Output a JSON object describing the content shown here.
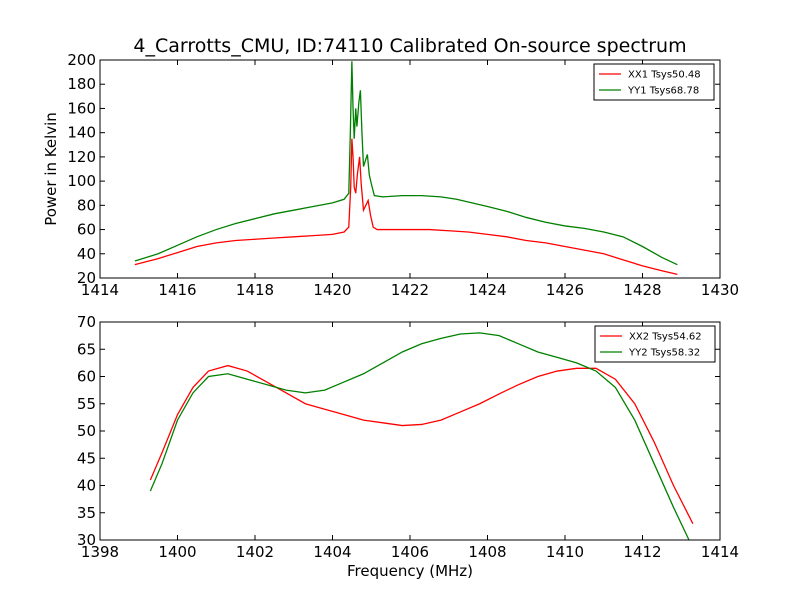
{
  "chart_data": [
    {
      "type": "line",
      "title": "4_Carrotts_CMU, ID:74110 Calibrated On-source spectrum",
      "xlabel": "",
      "ylabel": "Power in Kelvin",
      "xlim": [
        1414,
        1430
      ],
      "ylim": [
        20,
        200
      ],
      "xticks": [
        1414,
        1416,
        1418,
        1420,
        1422,
        1424,
        1426,
        1428,
        1430
      ],
      "yticks": [
        20,
        40,
        60,
        80,
        100,
        120,
        140,
        160,
        180,
        200
      ],
      "legend_position": "top-right",
      "series": [
        {
          "name": "XX1 Tsys50.48",
          "color": "#ff0000",
          "points": [
            [
              1414.9,
              31
            ],
            [
              1415.5,
              36
            ],
            [
              1416,
              41
            ],
            [
              1416.5,
              46
            ],
            [
              1417,
              49
            ],
            [
              1417.5,
              51
            ],
            [
              1418,
              52
            ],
            [
              1418.5,
              53
            ],
            [
              1419,
              54
            ],
            [
              1419.5,
              55
            ],
            [
              1420,
              56
            ],
            [
              1420.3,
              58
            ],
            [
              1420.42,
              62
            ],
            [
              1420.47,
              95
            ],
            [
              1420.5,
              135
            ],
            [
              1420.53,
              120
            ],
            [
              1420.56,
              95
            ],
            [
              1420.6,
              90
            ],
            [
              1420.64,
              105
            ],
            [
              1420.7,
              120
            ],
            [
              1420.74,
              98
            ],
            [
              1420.8,
              76
            ],
            [
              1420.86,
              80
            ],
            [
              1420.92,
              84
            ],
            [
              1420.98,
              72
            ],
            [
              1421.05,
              62
            ],
            [
              1421.15,
              60
            ],
            [
              1421.5,
              60
            ],
            [
              1422,
              60
            ],
            [
              1422.5,
              60
            ],
            [
              1423,
              59
            ],
            [
              1423.5,
              58
            ],
            [
              1424,
              56
            ],
            [
              1424.5,
              54
            ],
            [
              1425,
              51
            ],
            [
              1425.5,
              49
            ],
            [
              1426,
              46
            ],
            [
              1426.5,
              43
            ],
            [
              1427,
              40
            ],
            [
              1427.5,
              35
            ],
            [
              1428,
              30
            ],
            [
              1428.5,
              26
            ],
            [
              1428.9,
              23
            ]
          ]
        },
        {
          "name": "YY1 Tsys68.78",
          "color": "#008000",
          "points": [
            [
              1414.9,
              34
            ],
            [
              1415.5,
              40
            ],
            [
              1416,
              47
            ],
            [
              1416.5,
              54
            ],
            [
              1417,
              60
            ],
            [
              1417.5,
              65
            ],
            [
              1418,
              69
            ],
            [
              1418.5,
              73
            ],
            [
              1419,
              76
            ],
            [
              1419.5,
              79
            ],
            [
              1420,
              82
            ],
            [
              1420.3,
              85
            ],
            [
              1420.42,
              90
            ],
            [
              1420.46,
              140
            ],
            [
              1420.5,
              199
            ],
            [
              1420.53,
              160
            ],
            [
              1420.56,
              135
            ],
            [
              1420.6,
              160
            ],
            [
              1420.63,
              145
            ],
            [
              1420.68,
              165
            ],
            [
              1420.72,
              175
            ],
            [
              1420.76,
              140
            ],
            [
              1420.8,
              112
            ],
            [
              1420.86,
              118
            ],
            [
              1420.9,
              122
            ],
            [
              1420.95,
              105
            ],
            [
              1421,
              98
            ],
            [
              1421.08,
              88
            ],
            [
              1421.3,
              87
            ],
            [
              1421.8,
              88
            ],
            [
              1422.3,
              88
            ],
            [
              1422.8,
              87
            ],
            [
              1423.2,
              85
            ],
            [
              1423.6,
              82
            ],
            [
              1424,
              79
            ],
            [
              1424.5,
              75
            ],
            [
              1425,
              70
            ],
            [
              1425.5,
              66
            ],
            [
              1426,
              63
            ],
            [
              1426.5,
              61
            ],
            [
              1427,
              58
            ],
            [
              1427.5,
              54
            ],
            [
              1428,
              46
            ],
            [
              1428.5,
              37
            ],
            [
              1428.9,
              31
            ]
          ]
        }
      ]
    },
    {
      "type": "line",
      "title": "",
      "xlabel": "Frequency (MHz)",
      "ylabel": "",
      "xlim": [
        1398,
        1414
      ],
      "ylim": [
        30,
        70
      ],
      "xticks": [
        1398,
        1400,
        1402,
        1404,
        1406,
        1408,
        1410,
        1412,
        1414
      ],
      "yticks": [
        30,
        35,
        40,
        45,
        50,
        55,
        60,
        65,
        70
      ],
      "legend_position": "top-right",
      "series": [
        {
          "name": "XX2 Tsys54.62",
          "color": "#ff0000",
          "points": [
            [
              1399.3,
              41
            ],
            [
              1399.6,
              46
            ],
            [
              1400,
              53
            ],
            [
              1400.4,
              58
            ],
            [
              1400.8,
              61
            ],
            [
              1401.3,
              62
            ],
            [
              1401.8,
              61
            ],
            [
              1402.3,
              59
            ],
            [
              1402.8,
              57
            ],
            [
              1403.3,
              55
            ],
            [
              1403.8,
              54
            ],
            [
              1404.3,
              53
            ],
            [
              1404.8,
              52
            ],
            [
              1405.3,
              51.5
            ],
            [
              1405.8,
              51
            ],
            [
              1406.3,
              51.2
            ],
            [
              1406.8,
              52
            ],
            [
              1407.3,
              53.5
            ],
            [
              1407.8,
              55
            ],
            [
              1408.3,
              56.8
            ],
            [
              1408.8,
              58.5
            ],
            [
              1409.3,
              60
            ],
            [
              1409.8,
              61
            ],
            [
              1410.3,
              61.5
            ],
            [
              1410.8,
              61.5
            ],
            [
              1411.3,
              59.5
            ],
            [
              1411.8,
              55
            ],
            [
              1412.3,
              48
            ],
            [
              1412.8,
              40
            ],
            [
              1413.3,
              33
            ]
          ]
        },
        {
          "name": "YY2 Tsys58.32",
          "color": "#008000",
          "points": [
            [
              1399.3,
              39
            ],
            [
              1399.6,
              44
            ],
            [
              1400,
              52
            ],
            [
              1400.4,
              57
            ],
            [
              1400.8,
              60
            ],
            [
              1401.3,
              60.5
            ],
            [
              1401.8,
              59.5
            ],
            [
              1402.3,
              58.5
            ],
            [
              1402.8,
              57.5
            ],
            [
              1403.3,
              57
            ],
            [
              1403.8,
              57.5
            ],
            [
              1404.3,
              59
            ],
            [
              1404.8,
              60.5
            ],
            [
              1405.3,
              62.5
            ],
            [
              1405.8,
              64.5
            ],
            [
              1406.3,
              66
            ],
            [
              1406.8,
              67
            ],
            [
              1407.3,
              67.8
            ],
            [
              1407.8,
              68
            ],
            [
              1408.3,
              67.5
            ],
            [
              1408.8,
              66
            ],
            [
              1409.3,
              64.5
            ],
            [
              1409.8,
              63.5
            ],
            [
              1410.3,
              62.5
            ],
            [
              1410.8,
              61
            ],
            [
              1411.3,
              58
            ],
            [
              1411.8,
              52
            ],
            [
              1412.3,
              44
            ],
            [
              1412.8,
              36
            ],
            [
              1413.2,
              30
            ]
          ]
        }
      ]
    }
  ]
}
